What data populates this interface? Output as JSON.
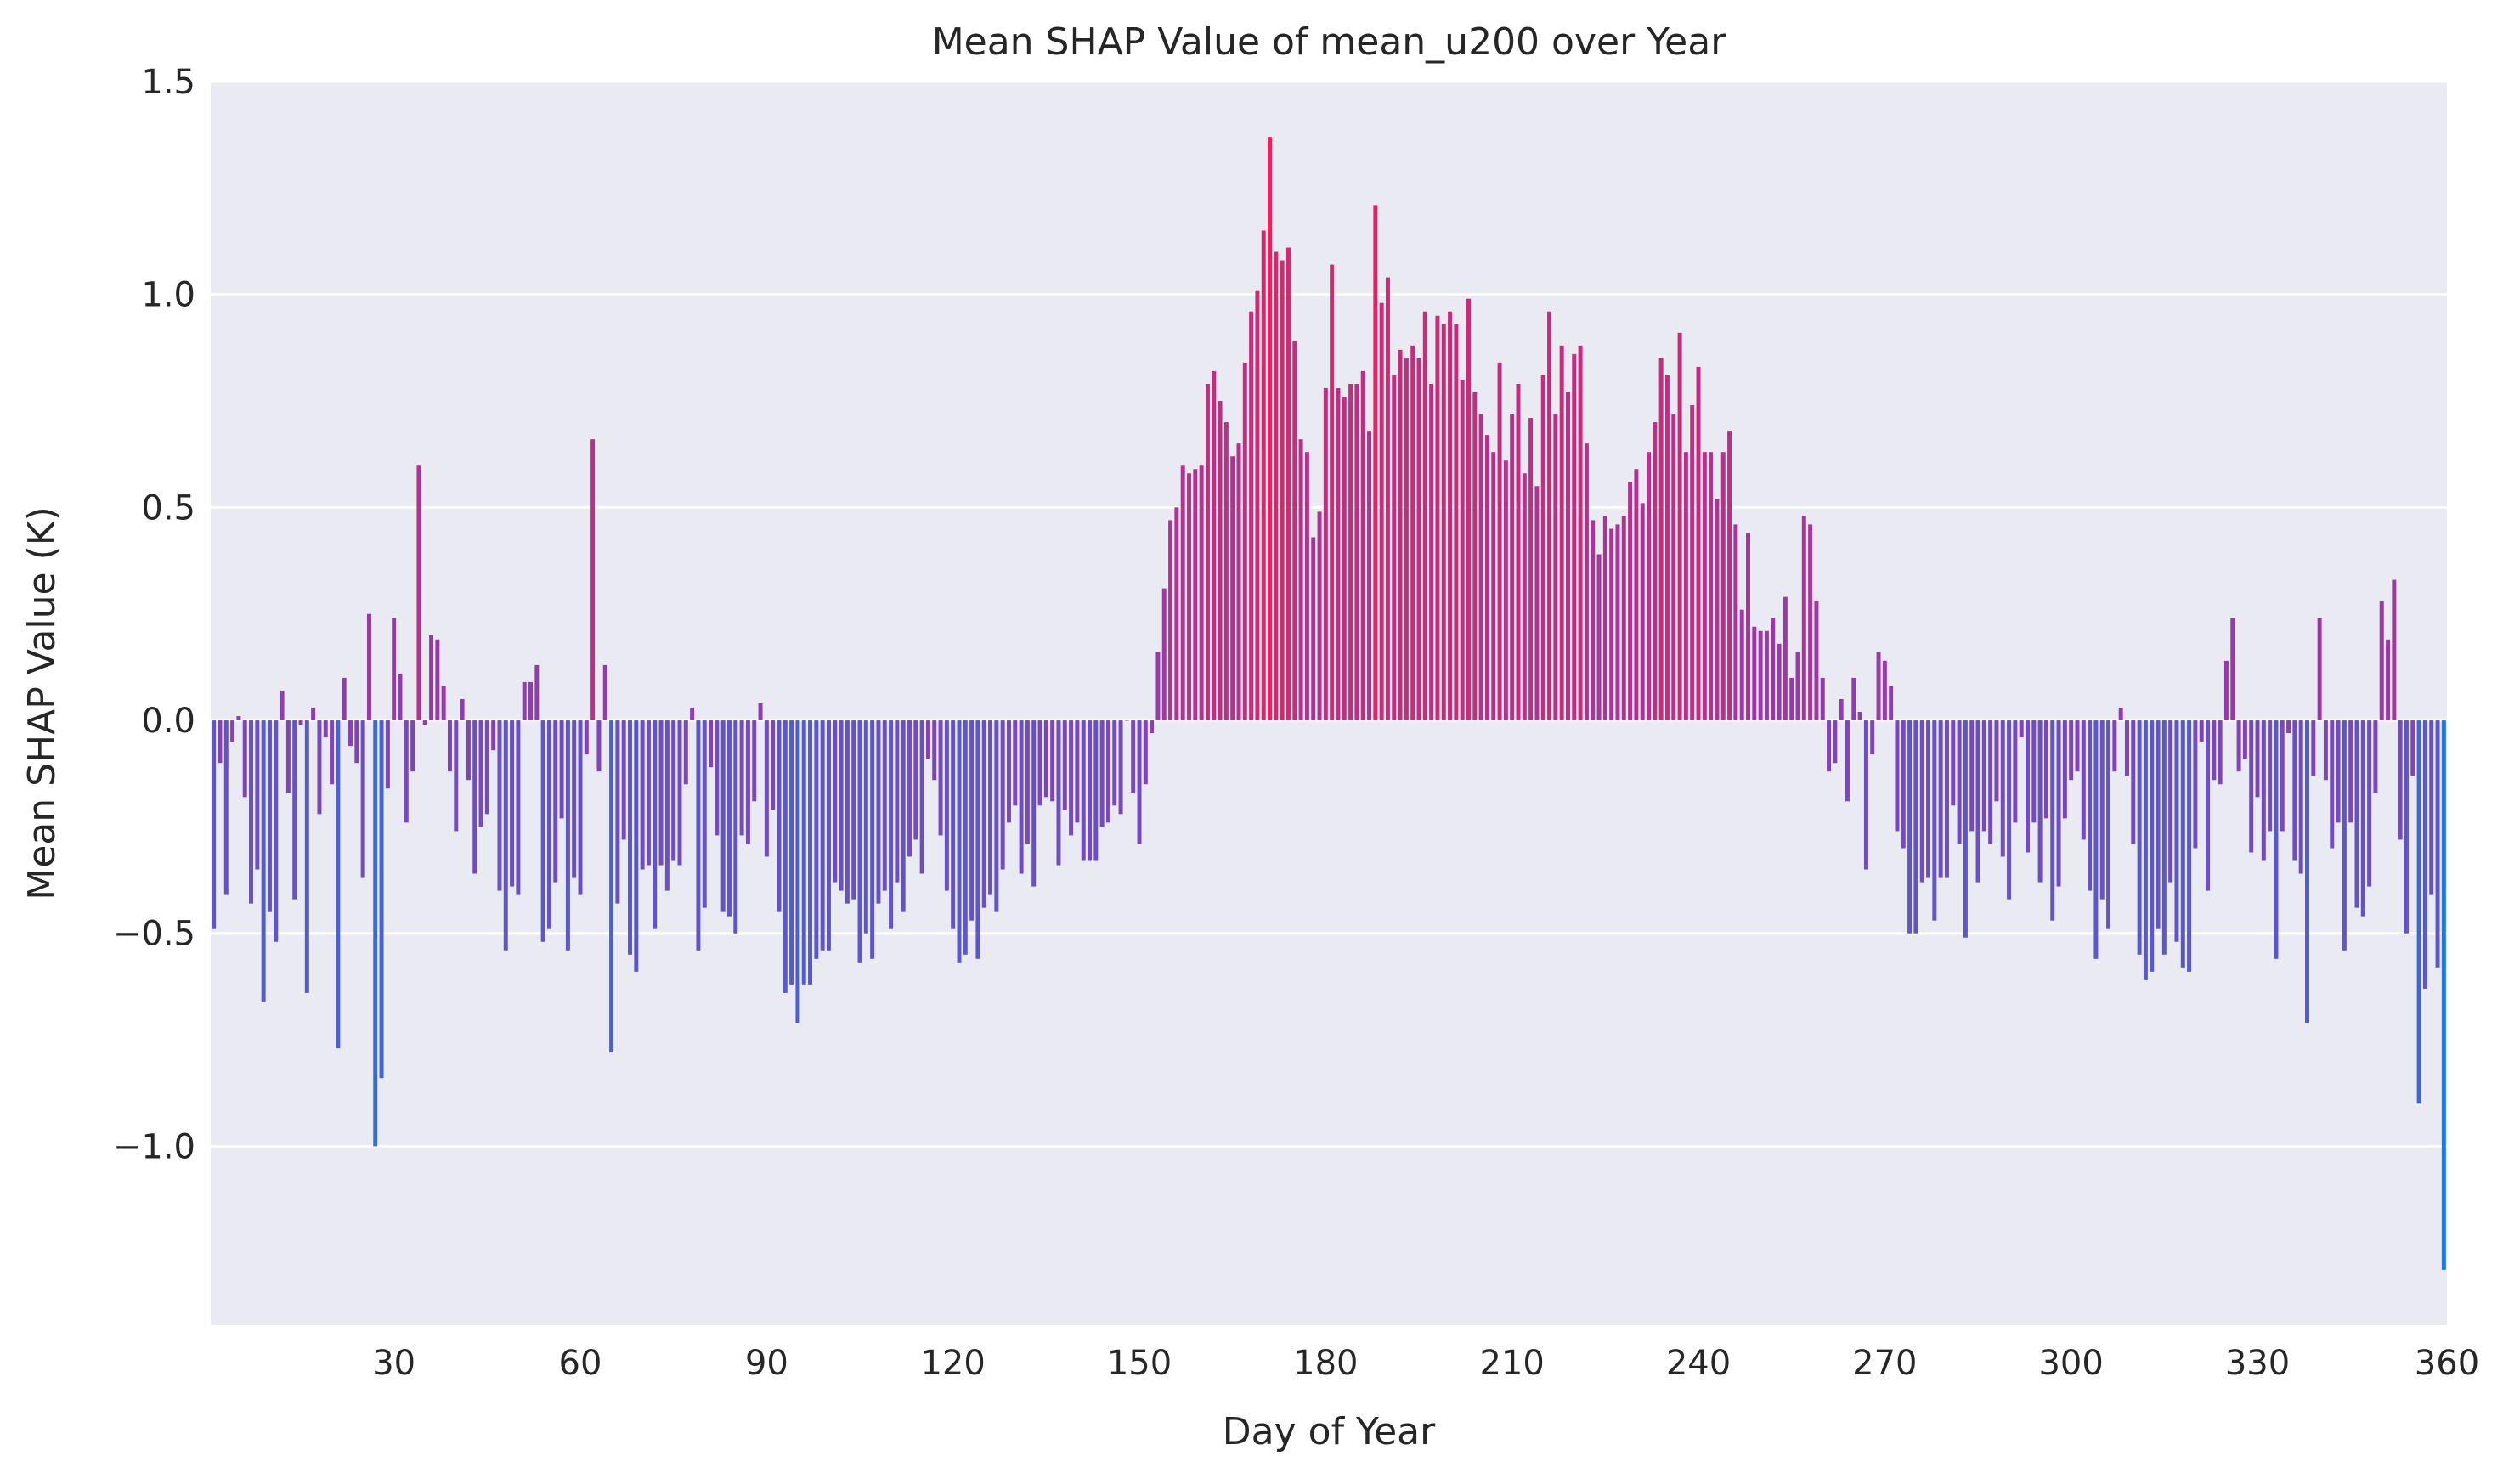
{
  "chart_data": {
    "type": "bar",
    "title": "Mean SHAP Value of mean_u200 over Year",
    "xlabel": "Day of Year",
    "ylabel": "Mean SHAP Value (K)",
    "xlim": [
      0,
      360
    ],
    "ylim": [
      -1.42,
      1.5
    ],
    "x_ticks": [
      30,
      60,
      90,
      120,
      150,
      180,
      210,
      240,
      270,
      300,
      330,
      360
    ],
    "x_tick_labels": [
      "30",
      "60",
      "90",
      "120",
      "150",
      "180",
      "210",
      "240",
      "270",
      "300",
      "330",
      "360"
    ],
    "y_ticks": [
      -1.0,
      -0.5,
      0.0,
      0.5,
      1.0,
      1.5
    ],
    "y_tick_labels": [
      "−1.0",
      "−0.5",
      "0.0",
      "0.5",
      "1.0",
      "1.5"
    ],
    "grid": true,
    "color_scale": {
      "low": "#1f78e0",
      "mid": "#8e3cb4",
      "high": "#e8225a",
      "range": [
        -1.29,
        1.37
      ]
    },
    "x": [
      1,
      2,
      3,
      4,
      5,
      6,
      7,
      8,
      9,
      10,
      11,
      12,
      13,
      14,
      15,
      16,
      17,
      18,
      19,
      20,
      21,
      22,
      23,
      24,
      25,
      26,
      27,
      28,
      29,
      30,
      31,
      32,
      33,
      34,
      35,
      36,
      37,
      38,
      39,
      40,
      41,
      42,
      43,
      44,
      45,
      46,
      47,
      48,
      49,
      50,
      51,
      52,
      53,
      54,
      55,
      56,
      57,
      58,
      59,
      60,
      61,
      62,
      63,
      64,
      65,
      66,
      67,
      68,
      69,
      70,
      71,
      72,
      73,
      74,
      75,
      76,
      77,
      78,
      79,
      80,
      81,
      82,
      83,
      84,
      85,
      86,
      87,
      88,
      89,
      90,
      91,
      92,
      93,
      94,
      95,
      96,
      97,
      98,
      99,
      100,
      101,
      102,
      103,
      104,
      105,
      106,
      107,
      108,
      109,
      110,
      111,
      112,
      113,
      114,
      115,
      116,
      117,
      118,
      119,
      120,
      121,
      122,
      123,
      124,
      125,
      126,
      127,
      128,
      129,
      130,
      131,
      132,
      133,
      134,
      135,
      136,
      137,
      138,
      139,
      140,
      141,
      142,
      143,
      144,
      145,
      146,
      147,
      148,
      149,
      150,
      151,
      152,
      153,
      154,
      155,
      156,
      157,
      158,
      159,
      160,
      161,
      162,
      163,
      164,
      165,
      166,
      167,
      168,
      169,
      170,
      171,
      172,
      173,
      174,
      175,
      176,
      177,
      178,
      179,
      180,
      181,
      182,
      183,
      184,
      185,
      186,
      187,
      188,
      189,
      190,
      191,
      192,
      193,
      194,
      195,
      196,
      197,
      198,
      199,
      200,
      201,
      202,
      203,
      204,
      205,
      206,
      207,
      208,
      209,
      210,
      211,
      212,
      213,
      214,
      215,
      216,
      217,
      218,
      219,
      220,
      221,
      222,
      223,
      224,
      225,
      226,
      227,
      228,
      229,
      230,
      231,
      232,
      233,
      234,
      235,
      236,
      237,
      238,
      239,
      240,
      241,
      242,
      243,
      244,
      245,
      246,
      247,
      248,
      249,
      250,
      251,
      252,
      253,
      254,
      255,
      256,
      257,
      258,
      259,
      260,
      261,
      262,
      263,
      264,
      265,
      266,
      267,
      268,
      269,
      270,
      271,
      272,
      273,
      274,
      275,
      276,
      277,
      278,
      279,
      280,
      281,
      282,
      283,
      284,
      285,
      286,
      287,
      288,
      289,
      290,
      291,
      292,
      293,
      294,
      295,
      296,
      297,
      298,
      299,
      300,
      301,
      302,
      303,
      304,
      305,
      306,
      307,
      308,
      309,
      310,
      311,
      312,
      313,
      314,
      315,
      316,
      317,
      318,
      319,
      320,
      321,
      322,
      323,
      324,
      325,
      326,
      327,
      328,
      329,
      330,
      331,
      332,
      333,
      334,
      335,
      336,
      337,
      338,
      339,
      340,
      341,
      342,
      343,
      344,
      345,
      346,
      347,
      348,
      349,
      350,
      351,
      352,
      353,
      354,
      355,
      356,
      357,
      358,
      359,
      360
    ],
    "values": [
      -0.49,
      -0.1,
      -0.41,
      -0.05,
      0.01,
      -0.18,
      -0.43,
      -0.35,
      -0.66,
      -0.45,
      -0.52,
      0.07,
      -0.17,
      -0.42,
      -0.01,
      -0.64,
      0.03,
      -0.22,
      -0.04,
      -0.15,
      -0.77,
      0.1,
      -0.06,
      -0.1,
      -0.37,
      0.25,
      -1.0,
      -0.84,
      -0.16,
      0.24,
      0.11,
      -0.24,
      -0.12,
      0.6,
      -0.01,
      0.2,
      0.19,
      0.08,
      -0.12,
      -0.26,
      0.05,
      -0.14,
      -0.36,
      -0.25,
      -0.22,
      -0.07,
      -0.4,
      -0.54,
      -0.39,
      -0.41,
      0.09,
      0.09,
      0.13,
      -0.52,
      -0.49,
      -0.38,
      -0.23,
      -0.54,
      -0.37,
      -0.41,
      -0.08,
      0.66,
      -0.12,
      0.13,
      -0.78,
      -0.43,
      -0.28,
      -0.55,
      -0.59,
      -0.35,
      -0.34,
      -0.49,
      -0.34,
      -0.4,
      -0.33,
      -0.34,
      -0.15,
      0.03,
      -0.54,
      -0.44,
      -0.11,
      -0.27,
      -0.45,
      -0.46,
      -0.5,
      -0.27,
      -0.29,
      -0.19,
      0.04,
      -0.32,
      -0.21,
      -0.45,
      -0.64,
      -0.62,
      -0.71,
      -0.62,
      -0.62,
      -0.56,
      -0.54,
      -0.54,
      -0.38,
      -0.4,
      -0.43,
      -0.42,
      -0.57,
      -0.5,
      -0.56,
      -0.43,
      -0.4,
      -0.49,
      -0.38,
      -0.45,
      -0.32,
      -0.28,
      -0.36,
      -0.09,
      -0.14,
      -0.27,
      -0.4,
      -0.49,
      -0.57,
      -0.55,
      -0.47,
      -0.56,
      -0.44,
      -0.41,
      -0.45,
      -0.35,
      -0.24,
      -0.2,
      -0.36,
      -0.29,
      -0.39,
      -0.2,
      -0.18,
      -0.19,
      -0.34,
      -0.21,
      -0.27,
      -0.24,
      -0.33,
      -0.33,
      -0.33,
      -0.25,
      -0.24,
      -0.2,
      -0.22,
      0.0,
      -0.17,
      -0.29,
      -0.15,
      -0.03,
      0.16,
      0.31,
      0.47,
      0.5,
      0.6,
      0.58,
      0.59,
      0.6,
      0.79,
      0.82,
      0.75,
      0.7,
      0.62,
      0.65,
      0.84,
      0.96,
      1.01,
      1.15,
      1.37,
      1.1,
      1.08,
      1.11,
      0.89,
      0.66,
      0.63,
      0.43,
      0.49,
      0.78,
      1.07,
      0.78,
      0.76,
      0.79,
      0.79,
      0.82,
      0.68,
      1.21,
      0.98,
      1.04,
      0.81,
      0.87,
      0.85,
      0.88,
      0.85,
      0.96,
      0.79,
      0.95,
      0.93,
      0.96,
      0.93,
      0.8,
      0.99,
      0.77,
      0.72,
      0.67,
      0.63,
      0.84,
      0.61,
      0.72,
      0.79,
      0.58,
      0.71,
      0.55,
      0.81,
      0.96,
      0.72,
      0.88,
      0.77,
      0.86,
      0.88,
      0.65,
      0.47,
      0.39,
      0.48,
      0.45,
      0.46,
      0.48,
      0.56,
      0.59,
      0.51,
      0.63,
      0.7,
      0.85,
      0.81,
      0.72,
      0.91,
      0.63,
      0.74,
      0.83,
      0.63,
      0.63,
      0.52,
      0.63,
      0.68,
      0.46,
      0.26,
      0.44,
      0.22,
      0.21,
      0.21,
      0.24,
      0.18,
      0.29,
      0.1,
      0.16,
      0.48,
      0.46,
      0.28,
      0.1,
      -0.12,
      -0.1,
      0.05,
      -0.19,
      0.1,
      0.02,
      -0.35,
      -0.08,
      0.16,
      0.14,
      0.08,
      -0.26,
      -0.3,
      -0.5,
      -0.5,
      -0.38,
      -0.37,
      -0.47,
      -0.37,
      -0.37,
      -0.2,
      -0.29,
      -0.51,
      -0.26,
      -0.38,
      -0.26,
      -0.29,
      -0.19,
      -0.32,
      -0.42,
      -0.24,
      -0.04,
      -0.31,
      -0.24,
      -0.38,
      -0.23,
      -0.47,
      -0.39,
      -0.23,
      -0.14,
      -0.12,
      -0.28,
      -0.4,
      -0.56,
      -0.42,
      -0.49,
      -0.12,
      0.03,
      -0.13,
      -0.29,
      -0.55,
      -0.61,
      -0.59,
      -0.49,
      -0.55,
      -0.38,
      -0.52,
      -0.58,
      -0.59,
      -0.3,
      -0.05,
      -0.4,
      -0.14,
      -0.15,
      0.14,
      0.24,
      -0.12,
      -0.09,
      -0.31,
      -0.18,
      -0.33,
      -0.26,
      -0.56,
      -0.26,
      -0.03,
      -0.33,
      -0.36,
      -0.71,
      -0.13,
      0.24,
      -0.14,
      -0.3,
      -0.24,
      -0.54,
      -0.24,
      -0.44,
      -0.46,
      -0.39,
      -0.17,
      0.28,
      0.19,
      0.33,
      -0.28,
      -0.5,
      -0.13,
      -0.9,
      -0.63,
      -0.41,
      -0.58,
      -1.29
    ]
  }
}
